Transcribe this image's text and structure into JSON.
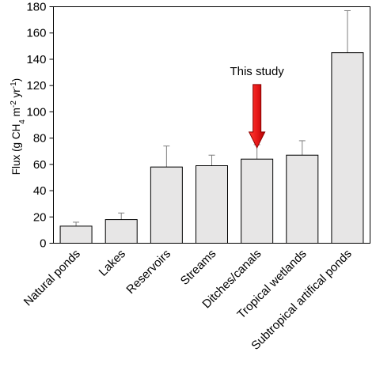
{
  "chart_data": {
    "type": "bar",
    "categories": [
      "Natural ponds",
      "Lakes",
      "Reservoirs",
      "Streams",
      "Ditches/canals",
      "Tropical wetlands",
      "Subtropical artifical ponds"
    ],
    "series": [
      {
        "values": [
          13,
          18,
          58,
          59,
          64,
          67,
          145
        ],
        "error_low": [
          11,
          14,
          42,
          51,
          53,
          55,
          113
        ],
        "error_high": [
          16,
          23,
          74,
          67,
          75,
          78,
          177
        ]
      }
    ],
    "ylabel": {
      "prefix": "Flux (g CH",
      "sub": "4",
      "mid1": " m",
      "sup1": "-2",
      "mid2": " yr",
      "sup2": "-1",
      "suffix": ")"
    },
    "ylim": [
      0,
      180
    ],
    "yticks": [
      "0",
      "20",
      "40",
      "60",
      "80",
      "100",
      "120",
      "140",
      "160",
      "180"
    ],
    "grid": false,
    "annotation": {
      "text": "This study",
      "target_category": "Ditches/canals",
      "arrow_color": "#e81a1a"
    },
    "bar_fill": "#e7e6e6",
    "bar_stroke": "#000000",
    "errorbar_color": "#7f7f7f"
  }
}
